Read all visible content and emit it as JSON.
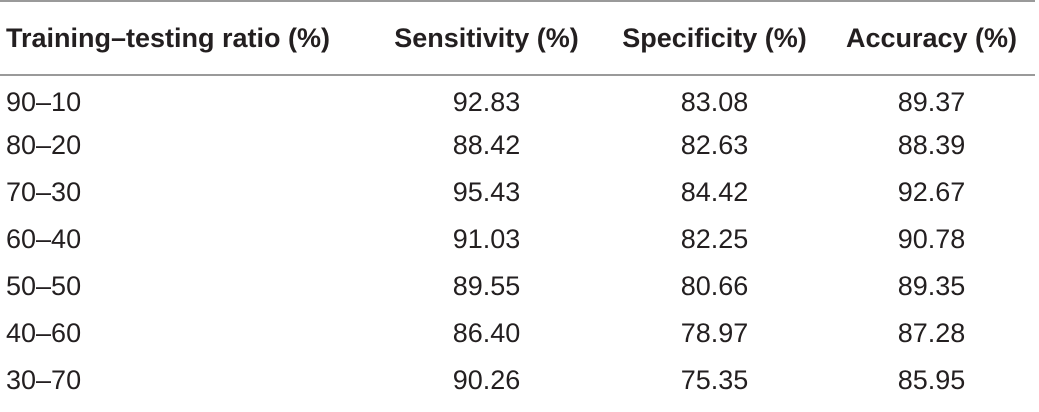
{
  "table": {
    "headers": [
      "Training–testing ratio (%)",
      "Sensitivity (%)",
      "Specificity (%)",
      "Accuracy (%)"
    ],
    "rows": [
      [
        "90–10",
        "92.83",
        "83.08",
        "89.37"
      ],
      [
        "80–20",
        "88.42",
        "82.63",
        "88.39"
      ],
      [
        "70–30",
        "95.43",
        "84.42",
        "92.67"
      ],
      [
        "60–40",
        "91.03",
        "82.25",
        "90.78"
      ],
      [
        "50–50",
        "89.55",
        "80.66",
        "89.35"
      ],
      [
        "40–60",
        "86.40",
        "78.97",
        "87.28"
      ],
      [
        "30–70",
        "90.26",
        "75.35",
        "85.95"
      ]
    ]
  }
}
